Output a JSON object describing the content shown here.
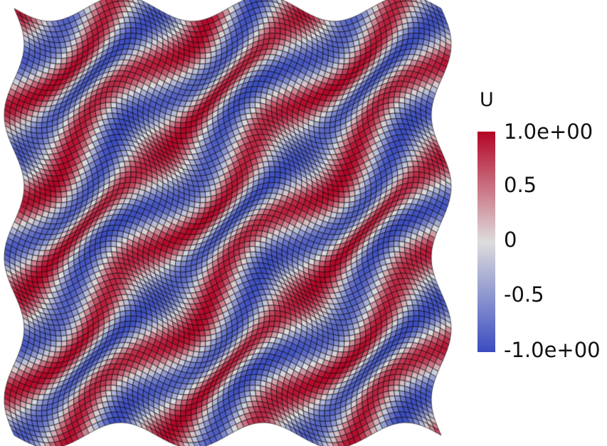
{
  "colorbar": {
    "title": "U",
    "range": [
      -1.0,
      1.0
    ],
    "labels": [
      "1.0e+00",
      "0.5",
      "0",
      "-0.5",
      "-1.0e+00"
    ],
    "colormap": "cool-to-warm",
    "colors": {
      "low": "#3b4cc0",
      "mid": "#dddddd",
      "high": "#b40426"
    }
  },
  "mesh": {
    "grid_lines": true,
    "line_color": "#000000",
    "field": "U",
    "pattern": "diagonal sinusoidal bands on a sine-deformed quadrilateral mesh"
  }
}
